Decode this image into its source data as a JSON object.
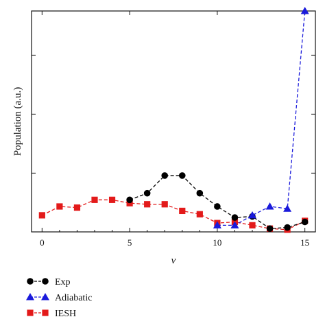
{
  "chart_data": {
    "type": "line",
    "xlabel": "ν",
    "ylabel": "Population (a.u.)",
    "xlim": [
      -0.6,
      15.6
    ],
    "ylim": [
      0,
      10
    ],
    "xticks": [
      0,
      5,
      10,
      15
    ],
    "xtick_labels": [
      "0",
      "5",
      "10",
      "15"
    ],
    "yticks": [
      2.66,
      5.33,
      8.0
    ],
    "ytick_labels": false,
    "grid": false,
    "legend_position": "bottom-left",
    "series": [
      {
        "name": "Exp",
        "color": "#000000",
        "marker": "circle",
        "line": "dashed",
        "x": [
          5,
          6,
          7,
          8,
          9,
          10,
          11,
          12,
          13,
          14,
          15
        ],
        "y": [
          1.45,
          1.75,
          2.55,
          2.55,
          1.75,
          1.15,
          0.65,
          0.7,
          0.15,
          0.2,
          0.45
        ]
      },
      {
        "name": "Adiabatic",
        "color": "#1a1adb",
        "marker": "triangle",
        "line": "dashed",
        "x": [
          10,
          11,
          12,
          13,
          14,
          15
        ],
        "y": [
          0.3,
          0.3,
          0.75,
          1.15,
          1.05,
          10.0
        ]
      },
      {
        "name": "IESH",
        "color": "#e31a1a",
        "marker": "square",
        "line": "dashed",
        "x": [
          0,
          1,
          2,
          3,
          4,
          5,
          6,
          7,
          8,
          9,
          10,
          11,
          12,
          13,
          14,
          15
        ],
        "y": [
          0.75,
          1.15,
          1.1,
          1.45,
          1.45,
          1.3,
          1.25,
          1.25,
          0.95,
          0.8,
          0.4,
          0.45,
          0.3,
          0.15,
          0.1,
          0.5
        ]
      }
    ]
  }
}
